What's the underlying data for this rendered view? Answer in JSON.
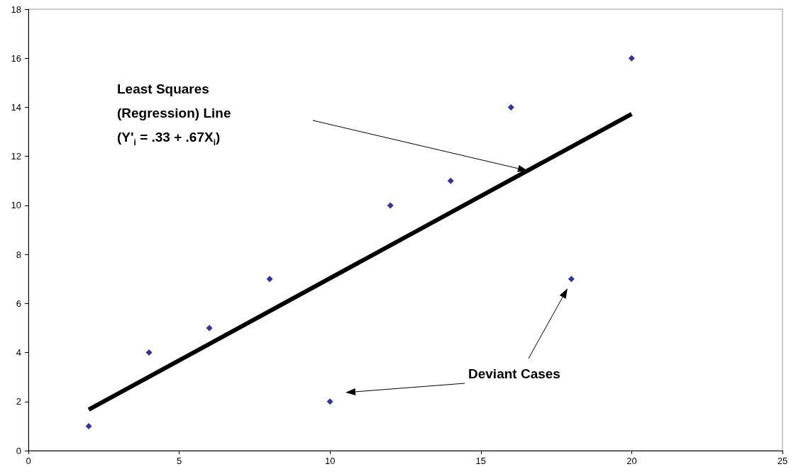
{
  "chart_data": {
    "type": "scatter",
    "xlim": [
      0,
      25
    ],
    "xticks": [
      0,
      5,
      10,
      15,
      20,
      25
    ],
    "ylim": [
      0,
      18
    ],
    "yticks": [
      0,
      2,
      4,
      6,
      8,
      10,
      12,
      14,
      16,
      18
    ],
    "series": [
      {
        "color": "#000080",
        "marker": "diamond",
        "x": [
          2,
          4,
          6,
          8,
          10,
          12,
          14,
          16,
          18,
          20
        ],
        "values": [
          1,
          4,
          5,
          7,
          2,
          10,
          11,
          14,
          7,
          16
        ]
      },
      {
        "type": "line",
        "color": "#000000",
        "marker": "none",
        "x": [
          2,
          20
        ],
        "values": [
          1.67,
          13.73
        ]
      }
    ],
    "annotations": [
      "Least Squares\n(Regression) Line\n(Y'$_{i}$ = .33 + .67X$_{i}$)",
      "Deviant Cases"
    ]
  }
}
